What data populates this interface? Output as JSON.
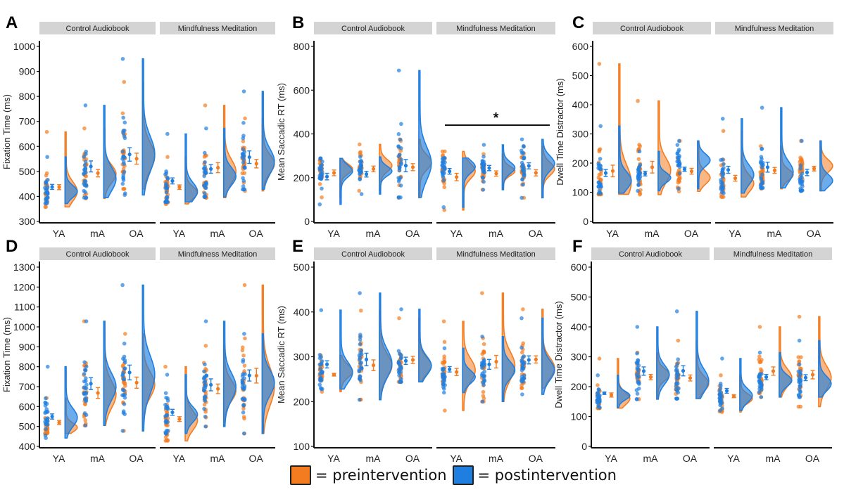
{
  "colors": {
    "pre": "#f47c20",
    "post": "#1f7fe0",
    "strip": "#d4d4d4",
    "axis": "#111111"
  },
  "legend": [
    {
      "key": "pre",
      "label": "= preintervention"
    },
    {
      "key": "post",
      "label": "= postintervention"
    }
  ],
  "facets": [
    "Control Audiobook",
    "Mindfulness Meditation"
  ],
  "groups": [
    "YA",
    "mA",
    "OA"
  ],
  "chart_data": [
    {
      "panel": "A",
      "type": "raincloud",
      "ylabel": "Fixation Time (ms)",
      "ylim": [
        300,
        1000
      ],
      "yticks": [
        300,
        400,
        500,
        600,
        700,
        800,
        900,
        1000
      ],
      "facets": [
        {
          "name": "Control Audiobook",
          "groups": [
            {
              "group": "YA",
              "pre": {
                "mean": 437,
                "se": 10,
                "min": 358,
                "max": 658,
                "mode": 420
              },
              "post": {
                "mean": 438,
                "se": 10,
                "min": 372,
                "max": 558,
                "mode": 420
              }
            },
            {
              "group": "mA",
              "pre": {
                "mean": 493,
                "se": 15,
                "min": 392,
                "max": 672,
                "mode": 490
              },
              "post": {
                "mean": 520,
                "se": 22,
                "min": 395,
                "max": 764,
                "mode": 470
              }
            },
            {
              "group": "OA",
              "pre": {
                "mean": 551,
                "se": 22,
                "min": 430,
                "max": 858,
                "mode": 560
              },
              "post": {
                "mean": 568,
                "se": 27,
                "min": 406,
                "max": 950,
                "mode": 570
              }
            }
          ]
        },
        {
          "name": "Mindfulness Meditation",
          "groups": [
            {
              "group": "YA",
              "pre": {
                "mean": 437,
                "se": 9,
                "min": 370,
                "max": 558,
                "mode": 415
              },
              "post": {
                "mean": 462,
                "se": 12,
                "min": 378,
                "max": 650,
                "mode": 420
              }
            },
            {
              "group": "mA",
              "pre": {
                "mean": 515,
                "se": 20,
                "min": 395,
                "max": 764,
                "mode": 500
              },
              "post": {
                "mean": 510,
                "se": 17,
                "min": 398,
                "max": 672,
                "mode": 480
              }
            },
            {
              "group": "OA",
              "pre": {
                "mean": 531,
                "se": 17,
                "min": 422,
                "max": 712,
                "mode": 530
              },
              "post": {
                "mean": 557,
                "se": 25,
                "min": 428,
                "max": 820,
                "mode": 540
              }
            }
          ]
        }
      ]
    },
    {
      "panel": "B",
      "type": "raincloud",
      "ylabel": "Mean Saccadic RT (ms)",
      "ylim": [
        0,
        800
      ],
      "yticks": [
        0,
        200,
        400,
        600,
        800
      ],
      "annotation": {
        "text": "*",
        "facet": "Mindfulness Meditation",
        "y": 440
      },
      "facets": [
        {
          "name": "Control Audiobook",
          "groups": [
            {
              "group": "YA",
              "pre": {
                "mean": 222,
                "se": 13,
                "min": 110,
                "max": 288,
                "mode": 240
              },
              "post": {
                "mean": 205,
                "se": 15,
                "min": 78,
                "max": 288,
                "mode": 230
              }
            },
            {
              "group": "mA",
              "pre": {
                "mean": 240,
                "se": 13,
                "min": 140,
                "max": 352,
                "mode": 255
              },
              "post": {
                "mean": 216,
                "se": 13,
                "min": 125,
                "max": 295,
                "mode": 230
              }
            },
            {
              "group": "OA",
              "pre": {
                "mean": 248,
                "se": 16,
                "min": 108,
                "max": 375,
                "mode": 270
              },
              "post": {
                "mean": 255,
                "se": 28,
                "min": 110,
                "max": 690,
                "mode": 265
              }
            }
          ]
        },
        {
          "name": "Mindfulness Meditation",
          "groups": [
            {
              "group": "YA",
              "pre": {
                "mean": 203,
                "se": 17,
                "min": 52,
                "max": 320,
                "mode": 230
              },
              "post": {
                "mean": 229,
                "se": 13,
                "min": 65,
                "max": 290,
                "mode": 250
              }
            },
            {
              "group": "mA",
              "pre": {
                "mean": 219,
                "se": 12,
                "min": 145,
                "max": 308,
                "mode": 230
              },
              "post": {
                "mean": 244,
                "se": 12,
                "min": 145,
                "max": 350,
                "mode": 245
              }
            },
            {
              "group": "OA",
              "pre": {
                "mean": 222,
                "se": 14,
                "min": 108,
                "max": 343,
                "mode": 240
              },
              "post": {
                "mean": 254,
                "se": 14,
                "min": 108,
                "max": 375,
                "mode": 265
              }
            }
          ]
        }
      ]
    },
    {
      "panel": "C",
      "type": "raincloud",
      "ylabel": "Dwell Time Distractor (ms)",
      "ylim": [
        0,
        600
      ],
      "yticks": [
        0,
        100,
        200,
        300,
        400,
        500,
        600
      ],
      "facets": [
        {
          "name": "Control Audiobook",
          "groups": [
            {
              "group": "YA",
              "pre": {
                "mean": 173,
                "se": 20,
                "min": 93,
                "max": 540,
                "mode": 135
              },
              "post": {
                "mean": 166,
                "se": 12,
                "min": 97,
                "max": 327,
                "mode": 140
              }
            },
            {
              "group": "mA",
              "pre": {
                "mean": 186,
                "se": 20,
                "min": 92,
                "max": 413,
                "mode": 175
              },
              "post": {
                "mean": 164,
                "se": 8,
                "min": 105,
                "max": 240,
                "mode": 150
              }
            },
            {
              "group": "OA",
              "pre": {
                "mean": 172,
                "se": 10,
                "min": 103,
                "max": 276,
                "mode": 150
              },
              "post": {
                "mean": 179,
                "se": 7,
                "min": 112,
                "max": 276,
                "mode": 210
              }
            }
          ]
        },
        {
          "name": "Mindfulness Meditation",
          "groups": [
            {
              "group": "YA",
              "pre": {
                "mean": 148,
                "se": 10,
                "min": 84,
                "max": 310,
                "mode": 130
              },
              "post": {
                "mean": 177,
                "se": 12,
                "min": 97,
                "max": 352,
                "mode": 160
              }
            },
            {
              "group": "mA",
              "pre": {
                "mean": 175,
                "se": 10,
                "min": 112,
                "max": 258,
                "mode": 160
              },
              "post": {
                "mean": 186,
                "se": 17,
                "min": 115,
                "max": 390,
                "mode": 170
              }
            },
            {
              "group": "OA",
              "pre": {
                "mean": 181,
                "se": 8,
                "min": 105,
                "max": 276,
                "mode": 190
              },
              "post": {
                "mean": 168,
                "se": 11,
                "min": 105,
                "max": 276,
                "mode": 140
              }
            }
          ]
        }
      ]
    },
    {
      "panel": "D",
      "type": "raincloud",
      "ylabel": "Fixation Time (ms)",
      "ylim": [
        400,
        1300
      ],
      "yticks": [
        400,
        500,
        600,
        700,
        800,
        900,
        1000,
        1100,
        1200,
        1300
      ],
      "facets": [
        {
          "name": "Control Audiobook",
          "groups": [
            {
              "group": "YA",
              "pre": {
                "mean": 520,
                "se": 10,
                "min": 465,
                "max": 643,
                "mode": 495
              },
              "post": {
                "mean": 550,
                "se": 13,
                "min": 442,
                "max": 800,
                "mode": 545
              }
            },
            {
              "group": "mA",
              "pre": {
                "mean": 668,
                "se": 27,
                "min": 505,
                "max": 1028,
                "mode": 660
              },
              "post": {
                "mean": 715,
                "se": 30,
                "min": 505,
                "max": 1028,
                "mode": 700
              }
            },
            {
              "group": "OA",
              "pre": {
                "mean": 720,
                "se": 28,
                "min": 478,
                "max": 965,
                "mode": 710
              },
              "post": {
                "mean": 771,
                "se": 37,
                "min": 478,
                "max": 1210,
                "mode": 760
              }
            }
          ]
        },
        {
          "name": "Mindfulness Meditation",
          "groups": [
            {
              "group": "YA",
              "pre": {
                "mean": 537,
                "se": 12,
                "min": 428,
                "max": 800,
                "mode": 530
              },
              "post": {
                "mean": 571,
                "se": 15,
                "min": 465,
                "max": 760,
                "mode": 560
              }
            },
            {
              "group": "mA",
              "pre": {
                "mean": 689,
                "se": 24,
                "min": 500,
                "max": 905,
                "mode": 680
              },
              "post": {
                "mean": 709,
                "se": 30,
                "min": 500,
                "max": 1028,
                "mode": 700
              }
            },
            {
              "group": "OA",
              "pre": {
                "mean": 755,
                "se": 37,
                "min": 465,
                "max": 1210,
                "mode": 700
              },
              "post": {
                "mean": 756,
                "se": 28,
                "min": 465,
                "max": 965,
                "mode": 720
              }
            }
          ]
        }
      ]
    },
    {
      "panel": "E",
      "type": "raincloud",
      "ylabel": "Mean Saccadic RT (ms)",
      "ylim": [
        100,
        500
      ],
      "yticks": [
        100,
        200,
        300,
        400,
        500
      ],
      "facets": [
        {
          "name": "Control Audiobook",
          "groups": [
            {
              "group": "YA",
              "pre": {
                "mean": 260,
                "se": 3,
                "min": 222,
                "max": 303,
                "mode": 268
              },
              "post": {
                "mean": 283,
                "se": 8,
                "min": 228,
                "max": 404,
                "mode": 265
              }
            },
            {
              "group": "mA",
              "pre": {
                "mean": 281,
                "se": 12,
                "min": 204,
                "max": 403,
                "mode": 280
              },
              "post": {
                "mean": 294,
                "se": 14,
                "min": 204,
                "max": 442,
                "mode": 285
              }
            },
            {
              "group": "OA",
              "pre": {
                "mean": 293,
                "se": 8,
                "min": 244,
                "max": 386,
                "mode": 280
              },
              "post": {
                "mean": 291,
                "se": 8,
                "min": 244,
                "max": 406,
                "mode": 280
              }
            }
          ]
        },
        {
          "name": "Mindfulness Meditation",
          "groups": [
            {
              "group": "YA",
              "pre": {
                "mean": 266,
                "se": 8,
                "min": 180,
                "max": 379,
                "mode": 270
              },
              "post": {
                "mean": 272,
                "se": 6,
                "min": 220,
                "max": 319,
                "mode": 255
              }
            },
            {
              "group": "mA",
              "pre": {
                "mean": 289,
                "se": 14,
                "min": 200,
                "max": 442,
                "mode": 280
              },
              "post": {
                "mean": 283,
                "se": 11,
                "min": 200,
                "max": 345,
                "mode": 270
              }
            },
            {
              "group": "OA",
              "pre": {
                "mean": 294,
                "se": 8,
                "min": 230,
                "max": 406,
                "mode": 275
              },
              "post": {
                "mean": 293,
                "se": 9,
                "min": 216,
                "max": 386,
                "mode": 270
              }
            }
          ]
        }
      ]
    },
    {
      "panel": "F",
      "type": "raincloud",
      "ylabel": "Dwell Time Distractor (ms)",
      "ylim": [
        0,
        600
      ],
      "yticks": [
        0,
        100,
        200,
        300,
        400,
        500,
        600
      ],
      "facets": [
        {
          "name": "Control Audiobook",
          "groups": [
            {
              "group": "YA",
              "pre": {
                "mean": 172,
                "se": 7,
                "min": 128,
                "max": 294,
                "mode": 160
              },
              "post": {
                "mean": 178,
                "se": 4,
                "min": 130,
                "max": 238,
                "mode": 170
              }
            },
            {
              "group": "mA",
              "pre": {
                "mean": 232,
                "se": 9,
                "min": 158,
                "max": 314,
                "mode": 240
              },
              "post": {
                "mean": 252,
                "se": 14,
                "min": 158,
                "max": 400,
                "mode": 240
              }
            },
            {
              "group": "OA",
              "pre": {
                "mean": 229,
                "se": 10,
                "min": 160,
                "max": 354,
                "mode": 210
              },
              "post": {
                "mean": 253,
                "se": 17,
                "min": 160,
                "max": 452,
                "mode": 220
              }
            }
          ]
        },
        {
          "name": "Mindfulness Meditation",
          "groups": [
            {
              "group": "YA",
              "pre": {
                "mean": 168,
                "se": 5,
                "min": 115,
                "max": 238,
                "mode": 160
              },
              "post": {
                "mean": 186,
                "se": 8,
                "min": 120,
                "max": 294,
                "mode": 170
              }
            },
            {
              "group": "mA",
              "pre": {
                "mean": 252,
                "se": 14,
                "min": 165,
                "max": 400,
                "mode": 230
              },
              "post": {
                "mean": 232,
                "se": 9,
                "min": 165,
                "max": 314,
                "mode": 220
              }
            },
            {
              "group": "OA",
              "pre": {
                "mean": 240,
                "se": 14,
                "min": 133,
                "max": 434,
                "mode": 230
              },
              "post": {
                "mean": 230,
                "se": 10,
                "min": 165,
                "max": 354,
                "mode": 210
              }
            }
          ]
        }
      ]
    }
  ]
}
